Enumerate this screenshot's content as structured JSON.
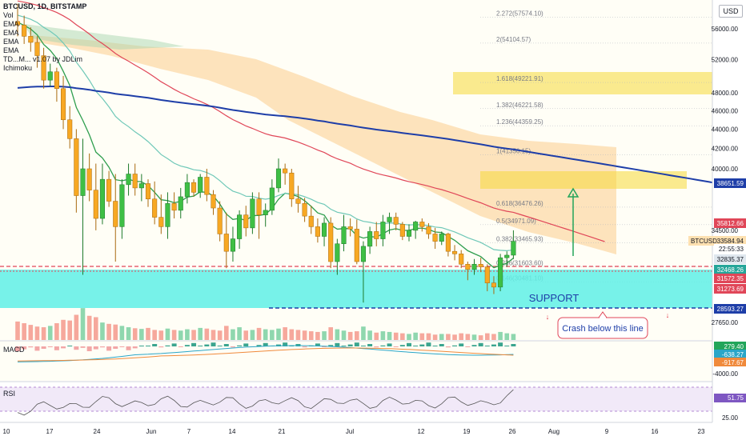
{
  "header": {
    "symbol_line": "BTCUSD, 1D, BITSTAMP",
    "indicators": [
      "Vol",
      "EMA",
      "EMA",
      "EMA",
      "EMA",
      "TD...M... v1.07 by JDLim",
      "Ichimoku"
    ],
    "currency_button": "USD"
  },
  "chart_data": {
    "type": "candlestick",
    "symbol": "BTCUSD",
    "interval": "1D",
    "exchange": "BITSTAMP",
    "x_tick_labels": [
      "10",
      "17",
      "24",
      "Jun",
      "7",
      "14",
      "21",
      "Jul",
      "12",
      "19",
      "26",
      "Aug",
      "9",
      "16",
      "23"
    ],
    "price_axis": {
      "scale": "log",
      "ticks": [
        56000,
        52000,
        48000,
        46000,
        44000,
        42000,
        40000,
        34500,
        31572.35,
        28593.27,
        27650
      ],
      "tick_labels": [
        "56000.00",
        "52000.00",
        "48000.00",
        "46000.00",
        "44000.00",
        "42000.00",
        "40000.00",
        "34500.00",
        "27650.00"
      ]
    },
    "price_tags": [
      {
        "label": "38651.59",
        "color": "#1e3ea8"
      },
      {
        "label": "35812.66",
        "color": "#e04658"
      },
      {
        "label": "BTCUSD",
        "color": "#ffffff",
        "value": "33584.94"
      },
      {
        "label": "22:55:33",
        "color": "#ffffff"
      },
      {
        "label": "32835.37",
        "color": "#dfe7ee"
      },
      {
        "label": "32468.26",
        "color": "#26a69a"
      },
      {
        "label": "31572.35",
        "color": "#e04658"
      },
      {
        "label": "31273.69",
        "color": "#e04658"
      },
      {
        "label": "28593.27",
        "color": "#1e3ea8"
      }
    ],
    "fib_levels": [
      {
        "label": "2.272(57574.10)"
      },
      {
        "label": "2(54104.57)"
      },
      {
        "label": "1.618(49221.91)"
      },
      {
        "label": "1.382(46221.58)"
      },
      {
        "label": "1.236(44359.25)"
      },
      {
        "label": "1(41356.15)"
      },
      {
        "label": "0.618(36476.26)"
      },
      {
        "label": "0.5(34971.09)"
      },
      {
        "label": "0.382(33465.93)"
      },
      {
        "label": "0.236(31603.60)"
      },
      {
        "label": "0.146(30481.10)"
      }
    ],
    "annotations": {
      "support_label": "SUPPORT",
      "crash_label": "Crash below this line"
    },
    "candles": [
      {
        "o": 57000,
        "h": 59500,
        "l": 55000,
        "c": 56500
      },
      {
        "o": 56500,
        "h": 57800,
        "l": 54000,
        "c": 55000
      },
      {
        "o": 55000,
        "h": 56200,
        "l": 53000,
        "c": 54200
      },
      {
        "o": 54200,
        "h": 55000,
        "l": 51000,
        "c": 52500
      },
      {
        "o": 52500,
        "h": 53500,
        "l": 48500,
        "c": 49500
      },
      {
        "o": 49500,
        "h": 51500,
        "l": 48800,
        "c": 50500
      },
      {
        "o": 50500,
        "h": 51000,
        "l": 47000,
        "c": 48500
      },
      {
        "o": 48500,
        "h": 50000,
        "l": 44000,
        "c": 45000
      },
      {
        "o": 45000,
        "h": 46500,
        "l": 42000,
        "c": 43000
      },
      {
        "o": 43000,
        "h": 44000,
        "l": 36000,
        "c": 37500
      },
      {
        "o": 37500,
        "h": 43000,
        "l": 31000,
        "c": 40000
      },
      {
        "o": 40000,
        "h": 41500,
        "l": 37000,
        "c": 38000
      },
      {
        "o": 38000,
        "h": 40500,
        "l": 34500,
        "c": 35500
      },
      {
        "o": 35500,
        "h": 40500,
        "l": 35000,
        "c": 39000
      },
      {
        "o": 39000,
        "h": 39800,
        "l": 36500,
        "c": 37000
      },
      {
        "o": 37000,
        "h": 39500,
        "l": 32000,
        "c": 34800
      },
      {
        "o": 34800,
        "h": 39000,
        "l": 33800,
        "c": 38500
      },
      {
        "o": 38500,
        "h": 40500,
        "l": 37500,
        "c": 39500
      },
      {
        "o": 39500,
        "h": 40500,
        "l": 37500,
        "c": 38200
      },
      {
        "o": 38200,
        "h": 39500,
        "l": 37000,
        "c": 38600
      },
      {
        "o": 38600,
        "h": 39000,
        "l": 36500,
        "c": 37200
      },
      {
        "o": 37200,
        "h": 38800,
        "l": 35000,
        "c": 35600
      },
      {
        "o": 35600,
        "h": 37600,
        "l": 34200,
        "c": 34800
      },
      {
        "o": 34800,
        "h": 37800,
        "l": 33800,
        "c": 36800
      },
      {
        "o": 36800,
        "h": 37800,
        "l": 35500,
        "c": 36200
      },
      {
        "o": 36200,
        "h": 38200,
        "l": 35500,
        "c": 37400
      },
      {
        "o": 37400,
        "h": 39500,
        "l": 36800,
        "c": 38700
      },
      {
        "o": 38700,
        "h": 39000,
        "l": 37400,
        "c": 37800
      },
      {
        "o": 37800,
        "h": 39500,
        "l": 37300,
        "c": 39200
      },
      {
        "o": 39200,
        "h": 40000,
        "l": 37000,
        "c": 37600
      },
      {
        "o": 37600,
        "h": 38000,
        "l": 35800,
        "c": 36400
      },
      {
        "o": 36400,
        "h": 37000,
        "l": 33600,
        "c": 34200
      },
      {
        "o": 34200,
        "h": 36000,
        "l": 31500,
        "c": 32800
      },
      {
        "o": 32800,
        "h": 34800,
        "l": 32000,
        "c": 33800
      },
      {
        "o": 33800,
        "h": 36200,
        "l": 33000,
        "c": 35800
      },
      {
        "o": 35800,
        "h": 36600,
        "l": 34000,
        "c": 34700
      },
      {
        "o": 34700,
        "h": 37800,
        "l": 34200,
        "c": 37200
      },
      {
        "o": 37200,
        "h": 37800,
        "l": 33800,
        "c": 35800
      },
      {
        "o": 35800,
        "h": 36800,
        "l": 34800,
        "c": 36200
      },
      {
        "o": 36200,
        "h": 39000,
        "l": 35800,
        "c": 38200
      },
      {
        "o": 38200,
        "h": 41000,
        "l": 37800,
        "c": 40000
      },
      {
        "o": 40000,
        "h": 40500,
        "l": 38500,
        "c": 39600
      },
      {
        "o": 39600,
        "h": 40000,
        "l": 36500,
        "c": 37200
      },
      {
        "o": 37200,
        "h": 38400,
        "l": 36000,
        "c": 36800
      },
      {
        "o": 36800,
        "h": 37300,
        "l": 35200,
        "c": 35700
      },
      {
        "o": 35700,
        "h": 36600,
        "l": 34200,
        "c": 34800
      },
      {
        "o": 34800,
        "h": 35500,
        "l": 33500,
        "c": 34000
      },
      {
        "o": 34000,
        "h": 35600,
        "l": 33200,
        "c": 35100
      },
      {
        "o": 35100,
        "h": 35600,
        "l": 31500,
        "c": 32000
      },
      {
        "o": 32000,
        "h": 33800,
        "l": 31000,
        "c": 33400
      },
      {
        "o": 33400,
        "h": 35800,
        "l": 32800,
        "c": 34800
      },
      {
        "o": 34800,
        "h": 35500,
        "l": 34000,
        "c": 34600
      },
      {
        "o": 34600,
        "h": 35400,
        "l": 31800,
        "c": 32000
      },
      {
        "o": 32000,
        "h": 33600,
        "l": 29000,
        "c": 33200
      },
      {
        "o": 33200,
        "h": 34800,
        "l": 32600,
        "c": 34400
      },
      {
        "o": 34400,
        "h": 35200,
        "l": 33200,
        "c": 33800
      },
      {
        "o": 33800,
        "h": 35800,
        "l": 33200,
        "c": 35200
      },
      {
        "o": 35200,
        "h": 36000,
        "l": 34200,
        "c": 35600
      },
      {
        "o": 35600,
        "h": 36000,
        "l": 34500,
        "c": 35000
      },
      {
        "o": 35000,
        "h": 35200,
        "l": 33700,
        "c": 34000
      },
      {
        "o": 34000,
        "h": 35000,
        "l": 33600,
        "c": 34500
      },
      {
        "o": 34500,
        "h": 35300,
        "l": 33800,
        "c": 35200
      },
      {
        "o": 35200,
        "h": 35500,
        "l": 34400,
        "c": 34800
      },
      {
        "o": 34800,
        "h": 35100,
        "l": 33800,
        "c": 34200
      },
      {
        "o": 34200,
        "h": 34700,
        "l": 33000,
        "c": 33600
      },
      {
        "o": 33600,
        "h": 34400,
        "l": 33300,
        "c": 34200
      },
      {
        "o": 34200,
        "h": 34300,
        "l": 32400,
        "c": 32800
      },
      {
        "o": 32800,
        "h": 33300,
        "l": 32100,
        "c": 32600
      },
      {
        "o": 32600,
        "h": 32900,
        "l": 31500,
        "c": 31800
      },
      {
        "o": 31800,
        "h": 32000,
        "l": 30600,
        "c": 31400
      },
      {
        "o": 31400,
        "h": 32200,
        "l": 31000,
        "c": 31800
      },
      {
        "o": 31800,
        "h": 32300,
        "l": 31200,
        "c": 31600
      },
      {
        "o": 31600,
        "h": 31800,
        "l": 29800,
        "c": 30400
      },
      {
        "o": 30400,
        "h": 30900,
        "l": 29600,
        "c": 30100
      },
      {
        "o": 30100,
        "h": 32600,
        "l": 29800,
        "c": 32300
      },
      {
        "o": 32300,
        "h": 32800,
        "l": 31600,
        "c": 32500
      },
      {
        "o": 32500,
        "h": 34500,
        "l": 32200,
        "c": 33600
      }
    ],
    "volumes": [
      55,
      50,
      45,
      40,
      38,
      42,
      50,
      60,
      58,
      75,
      95,
      72,
      68,
      52,
      48,
      46,
      42,
      38,
      35,
      33,
      36,
      30,
      28,
      34,
      30,
      28,
      32,
      30,
      36,
      34,
      30,
      28,
      42,
      32,
      38,
      28,
      30,
      36,
      32,
      30,
      34,
      38,
      32,
      30,
      28,
      26,
      24,
      26,
      38,
      32,
      28,
      24,
      26,
      40,
      28,
      22,
      26,
      24,
      22,
      20,
      18,
      22,
      20,
      20,
      16,
      18,
      18,
      16,
      20,
      18,
      16,
      14,
      20,
      18,
      24,
      20,
      18
    ]
  },
  "panes": {
    "macd": {
      "label": "MACD",
      "tag_values": [
        "279.40",
        "-638.27",
        "-917.67"
      ],
      "axis_label": "-4000.00"
    },
    "rsi": {
      "label": "RSI",
      "tag_value": "51.75",
      "axis_label": "25.00"
    }
  },
  "colors": {
    "up": "#26a69a",
    "down": "#ef5350",
    "support_fill": "#5ff0e6",
    "ema_blue": "#1e3ea8",
    "ema_red": "#e04658",
    "ema_teal": "#6fc8b8",
    "ema_green": "#2e9e4e",
    "fib_zone": "#f6d838",
    "cloud": "#fcd9a8",
    "arrow_green": "#22a55a",
    "arrow_red": "#e03040"
  }
}
